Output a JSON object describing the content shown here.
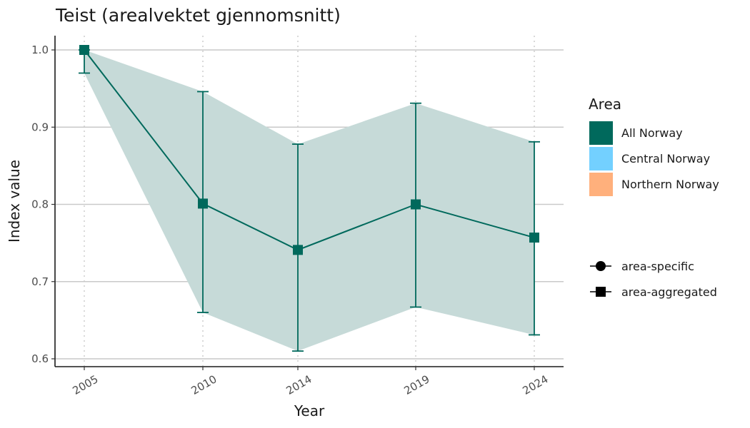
{
  "chart_data": {
    "type": "line",
    "title": "Teist (arealvektet gjennomsnitt)",
    "xlabel": "Year",
    "ylabel": "Index value",
    "ylim": [
      0.6,
      1.0
    ],
    "x": [
      "2005",
      "2010",
      "2014",
      "2019",
      "2024"
    ],
    "yticks": [
      "0.6",
      "0.7",
      "0.8",
      "0.9",
      "1.0"
    ],
    "series": [
      {
        "values": [
          1.0,
          0.801,
          0.741,
          0.8,
          0.757
        ],
        "lower": [
          0.97,
          0.66,
          0.61,
          0.667,
          0.631
        ],
        "upper": [
          1.0,
          0.946,
          0.878,
          0.931,
          0.881
        ],
        "color": "#00695c",
        "ribbon_color": "#c6dad8"
      }
    ],
    "grid": "horizontal major lines; dotted vertical lines at years",
    "legend": {
      "position": "right",
      "area_title": "Area",
      "areas": [
        {
          "label": "All Norway",
          "color": "#00695c"
        },
        {
          "label": "Central Norway",
          "color": "#73d0ff"
        },
        {
          "label": "Northern Norway",
          "color": "#ffb07c"
        }
      ],
      "shapes": [
        {
          "label": "area-specific",
          "shape": "circle"
        },
        {
          "label": "area-aggregated",
          "shape": "square"
        }
      ]
    }
  }
}
